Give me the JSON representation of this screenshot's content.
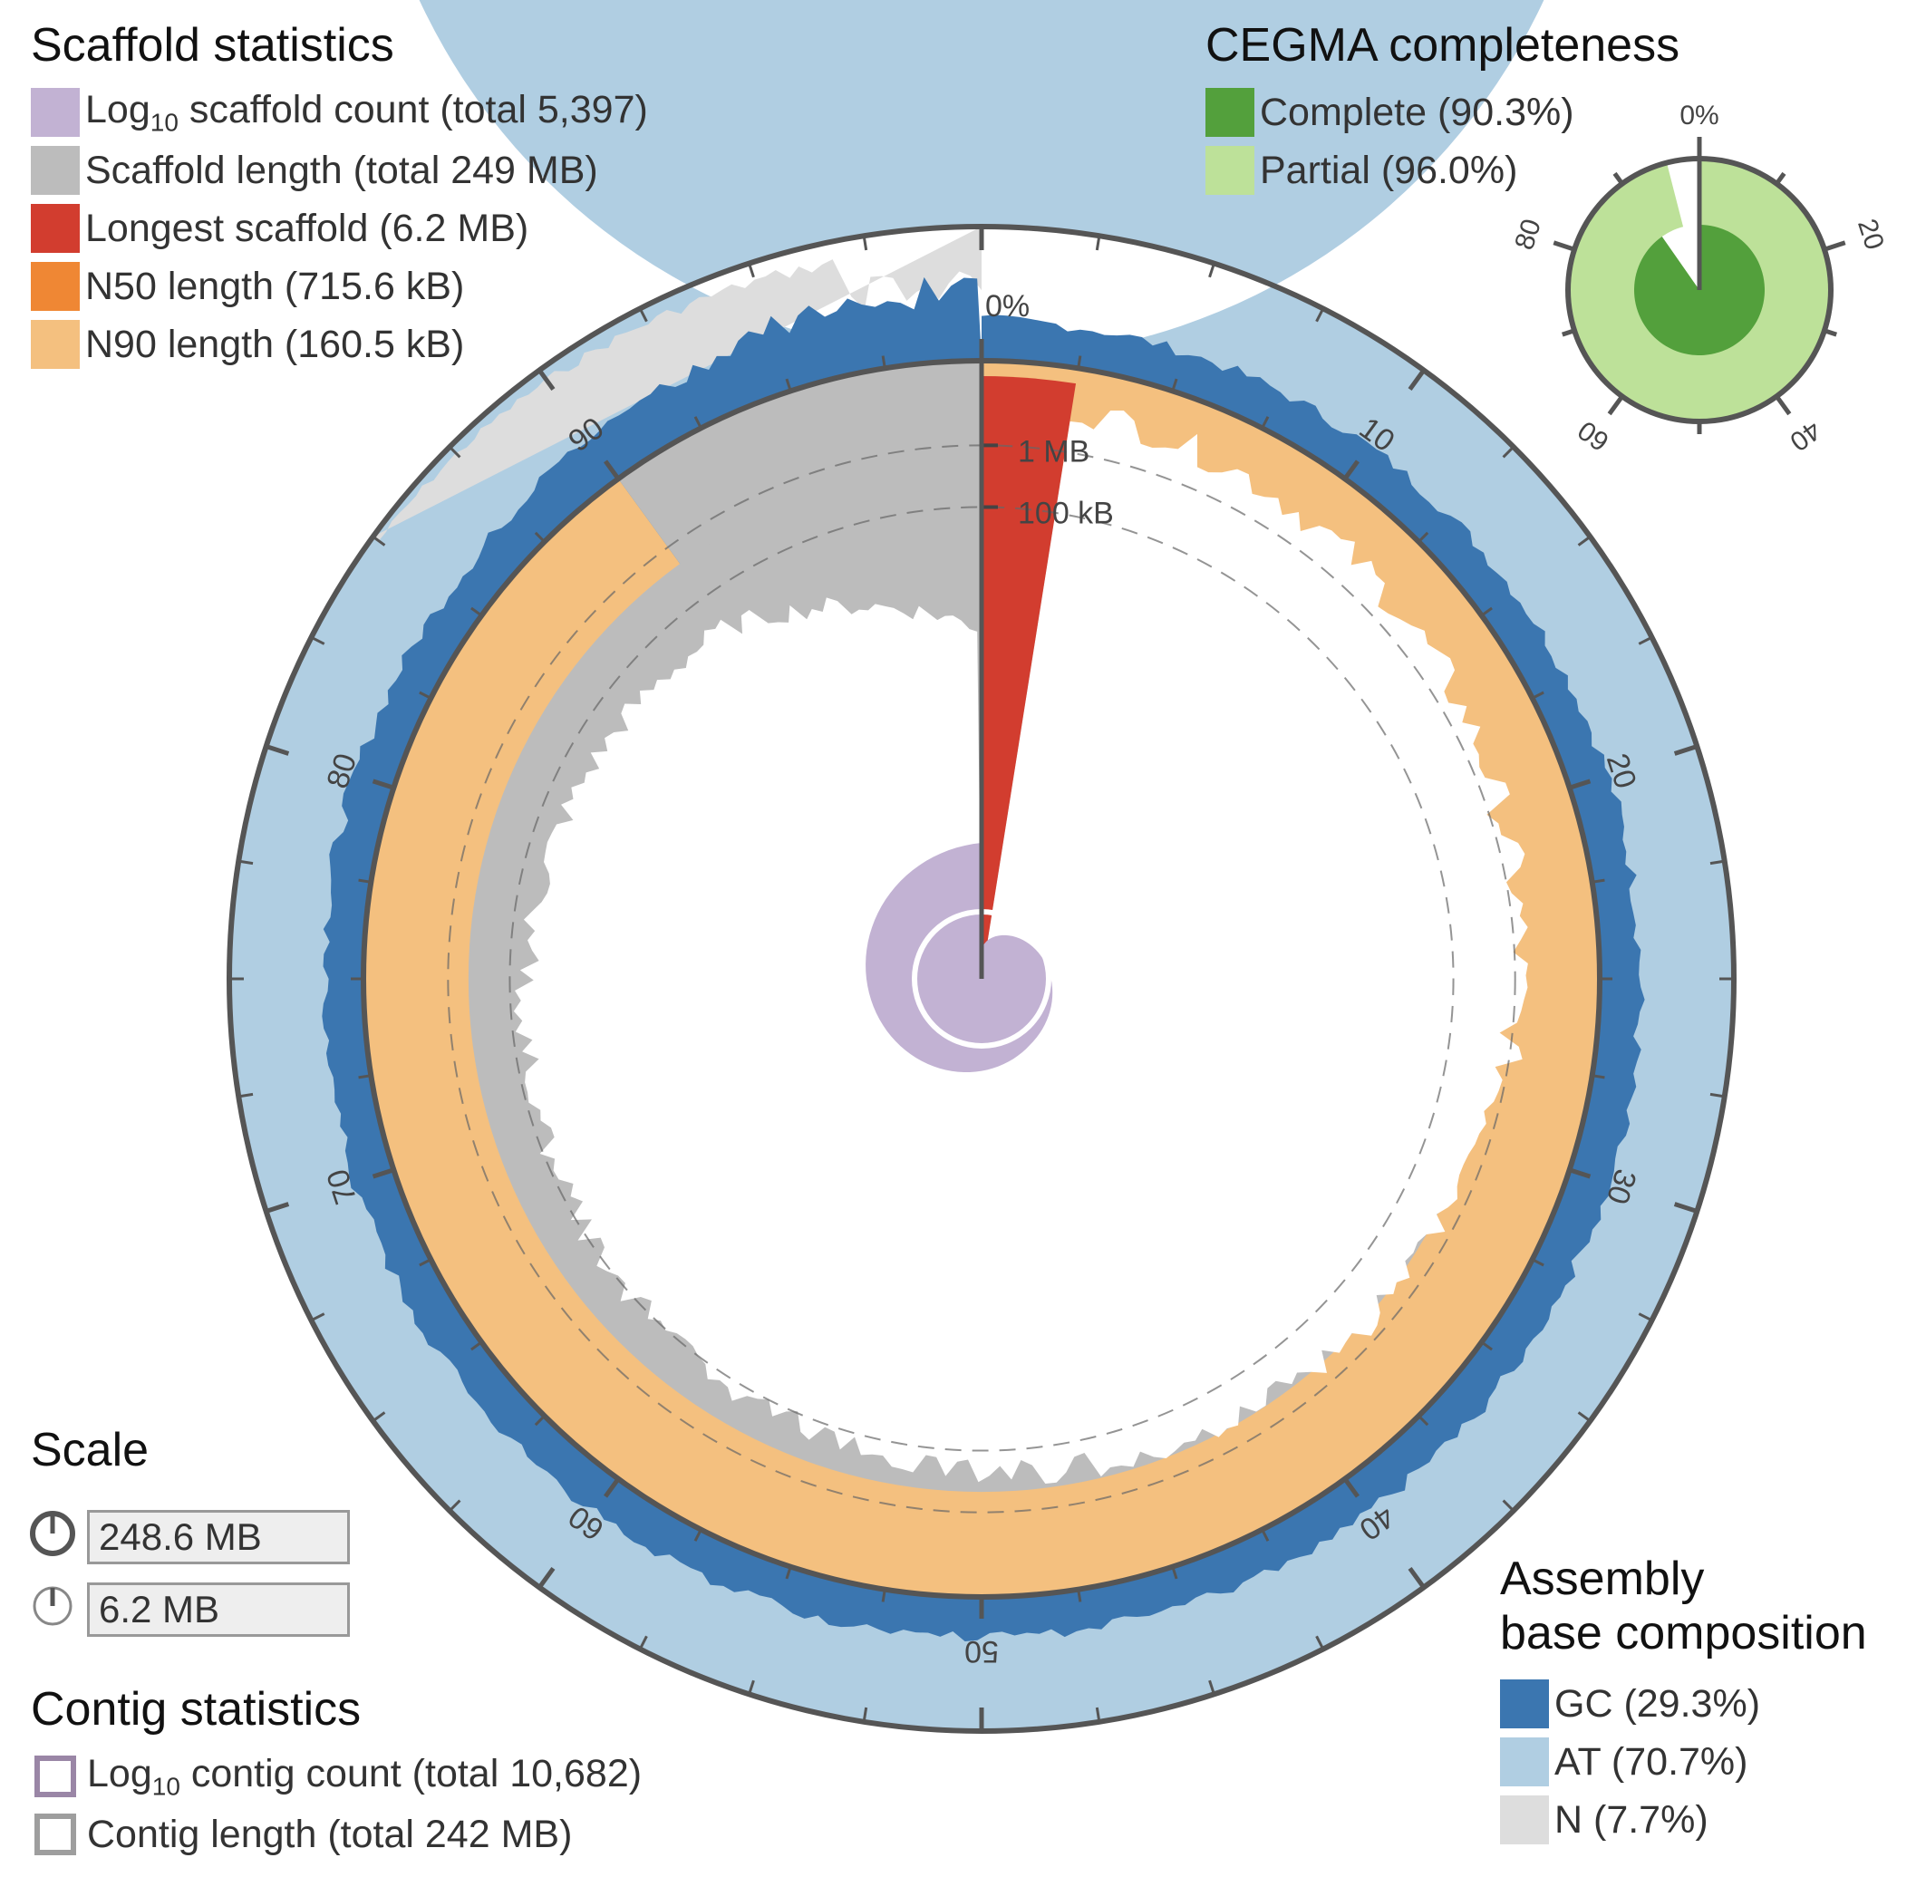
{
  "chart_data": {
    "type": "snail",
    "scaffold_statistics": {
      "title": "Scaffold statistics",
      "legend": [
        {
          "key": "count",
          "label_prefix": "Log",
          "label_sub": "10",
          "label_suffix": " scaffold count (total 5,397)",
          "color": "#c2b2d3"
        },
        {
          "key": "length",
          "label": "Scaffold length (total 249 MB)",
          "color": "#bcbcbc"
        },
        {
          "key": "longest",
          "label": "Longest scaffold (6.2 MB)",
          "color": "#d23d2f"
        },
        {
          "key": "n50",
          "label": "N50 length (715.6 kB)",
          "color": "#ef8734"
        },
        {
          "key": "n90",
          "label": "N90 length (160.5 kB)",
          "color": "#f4c07f"
        }
      ],
      "total_count": 5397,
      "total_length_mb": 249,
      "longest_mb": 6.2,
      "n50_kb": 715.6,
      "n90_kb": 160.5,
      "longest_percent": 2.5,
      "n50_percent": 50,
      "n90_percent": 90
    },
    "cegma": {
      "title": "CEGMA completeness",
      "legend": [
        {
          "key": "complete",
          "label": "Complete (90.3%)",
          "value": 90.3,
          "color": "#53a03c"
        },
        {
          "key": "partial",
          "label": "Partial (96.0%)",
          "value": 96.0,
          "color": "#bde199"
        }
      ],
      "ticks": [
        "0%",
        "20",
        "40",
        "60",
        "80"
      ]
    },
    "scale": {
      "title": "Scale",
      "circumference_value": "248.6 MB",
      "radius_value": "6.2 MB"
    },
    "contig_statistics": {
      "title": "Contig statistics",
      "legend": [
        {
          "key": "contig_count",
          "label_prefix": "Log",
          "label_sub": "10",
          "label_suffix": " contig count (total 10,682)",
          "color": "#9a86a6"
        },
        {
          "key": "contig_length",
          "label": "Contig length (total 242 MB)",
          "color": "#9e9e9e"
        }
      ]
    },
    "base_composition": {
      "title_line1": "Assembly",
      "title_line2": "base composition",
      "legend": [
        {
          "key": "gc",
          "label": "GC (29.3%)",
          "value": 29.3,
          "color": "#3b76b0"
        },
        {
          "key": "at",
          "label": "AT (70.7%)",
          "value": 70.7,
          "color": "#b0cee2"
        },
        {
          "key": "n",
          "label": "N (7.7%)",
          "value": 7.7,
          "color": "#dddddd"
        }
      ]
    },
    "percent_axis": {
      "major_ticks": [
        "0%",
        "10",
        "20",
        "30",
        "40",
        "50",
        "60",
        "70",
        "80",
        "90"
      ]
    },
    "radial_axis": {
      "ticks": [
        "100 kB",
        "1 MB"
      ]
    }
  }
}
